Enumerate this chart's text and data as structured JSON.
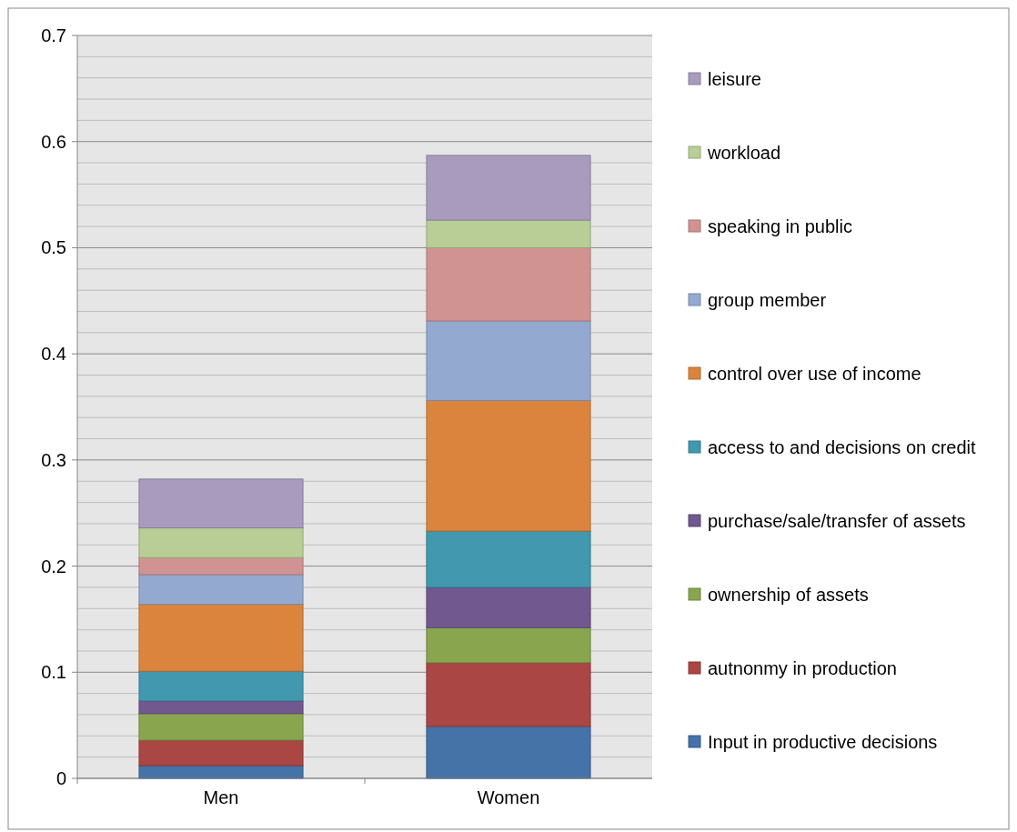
{
  "chart_data": {
    "type": "bar",
    "stacked": true,
    "categories": [
      "Men",
      "Women"
    ],
    "series": [
      {
        "name": "Input in productive decisions",
        "color": "#4572a7",
        "values": [
          0.012,
          0.049
        ]
      },
      {
        "name": "autnonmy in production",
        "color": "#aa4643",
        "values": [
          0.024,
          0.06
        ]
      },
      {
        "name": "ownership of assets",
        "color": "#89a54e",
        "values": [
          0.025,
          0.033
        ]
      },
      {
        "name": "purchase/sale/transfer of assets",
        "color": "#71588f",
        "values": [
          0.012,
          0.038
        ]
      },
      {
        "name": "access to and decisions on credit",
        "color": "#4198af",
        "values": [
          0.028,
          0.053
        ]
      },
      {
        "name": "control over use of income",
        "color": "#db843d",
        "values": [
          0.063,
          0.123
        ]
      },
      {
        "name": "group member",
        "color": "#93a9cf",
        "values": [
          0.028,
          0.075
        ]
      },
      {
        "name": "speaking in public",
        "color": "#d19392",
        "values": [
          0.016,
          0.069
        ]
      },
      {
        "name": "workload",
        "color": "#b9cd96",
        "values": [
          0.028,
          0.026
        ]
      },
      {
        "name": "leisure",
        "color": "#a99bbd",
        "values": [
          0.046,
          0.061
        ]
      }
    ],
    "ylim": [
      0,
      0.7
    ],
    "yticks": [
      0,
      {
        "value": 0.02,
        "label": null
      },
      {
        "value": 0.04,
        "label": null
      },
      {
        "value": 0.06,
        "label": null
      },
      {
        "value": 0.08,
        "label": null
      },
      0.1,
      {
        "value": 0.12,
        "label": null
      },
      {
        "value": 0.14,
        "label": null
      },
      {
        "value": 0.16,
        "label": null
      },
      {
        "value": 0.18,
        "label": null
      },
      0.2,
      {
        "value": 0.22,
        "label": null
      },
      {
        "value": 0.24,
        "label": null
      },
      {
        "value": 0.26,
        "label": null
      },
      {
        "value": 0.28,
        "label": null
      },
      0.3,
      {
        "value": 0.32,
        "label": null
      },
      {
        "value": 0.34,
        "label": null
      },
      {
        "value": 0.36,
        "label": null
      },
      {
        "value": 0.38,
        "label": null
      },
      0.4,
      {
        "value": 0.42,
        "label": null
      },
      {
        "value": 0.44,
        "label": null
      },
      {
        "value": 0.46,
        "label": null
      },
      {
        "value": 0.48,
        "label": null
      },
      0.5,
      {
        "value": 0.52,
        "label": null
      },
      {
        "value": 0.54,
        "label": null
      },
      {
        "value": 0.56,
        "label": null
      },
      {
        "value": 0.58,
        "label": null
      },
      0.6,
      {
        "value": 0.62,
        "label": null
      },
      {
        "value": 0.64,
        "label": null
      },
      {
        "value": 0.66,
        "label": null
      },
      {
        "value": 0.68,
        "label": null
      },
      0.7
    ],
    "grid": "y",
    "legend": "right"
  }
}
